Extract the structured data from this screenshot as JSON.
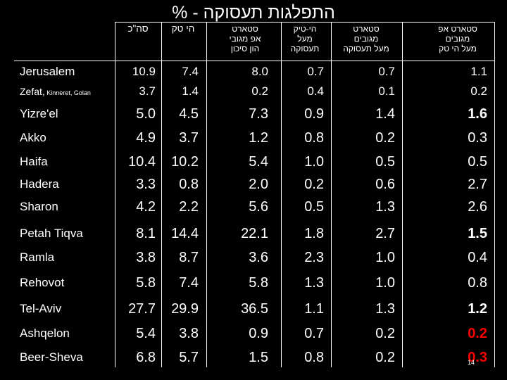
{
  "title": "התפלגות תעסוקה - %",
  "columns": [
    "סה\"כ",
    "הי טק",
    "סטארט\nאפ מגובי\nהון סיכון",
    "הי-טיק\nמעל\nתעסוקה",
    "סטארט\nמגובים\nמעל תעסוקה",
    "סטארט אפ\nמגובים\nמעל הי טק"
  ],
  "rows": [
    {
      "name": "Jerusalem",
      "values": [
        "10.9",
        "7.4",
        "8.0",
        "0.7",
        "0.7",
        "1.1"
      ]
    },
    {
      "name": "Zefat,",
      "name_suffix": " Kinneret, Golan",
      "values": [
        "3.7",
        "1.4",
        "0.2",
        "0.4",
        "0.1",
        "0.2"
      ]
    },
    {
      "name": "Yizre'el",
      "values": [
        "5.0",
        "4.5",
        "7.3",
        "0.9",
        "1.4",
        "1.6"
      ]
    },
    {
      "name": "Akko",
      "values": [
        "4.9",
        "3.7",
        "1.2",
        "0.8",
        "0.2",
        "0.3"
      ]
    },
    {
      "name": "Haifa",
      "values": [
        "10.4",
        "10.2",
        "5.4",
        "1.0",
        "0.5",
        "0.5"
      ]
    },
    {
      "name": "Hadera",
      "values": [
        "3.3",
        "0.8",
        "2.0",
        "0.2",
        "0.6",
        "2.7"
      ]
    },
    {
      "name": "Sharon",
      "values": [
        "4.2",
        "2.2",
        "5.6",
        "0.5",
        "1.3",
        "2.6"
      ]
    },
    {
      "name": "Petah Tiqva",
      "values": [
        "8.1",
        "14.4",
        "22.1",
        "1.8",
        "2.7",
        "1.5"
      ]
    },
    {
      "name": "Ramla",
      "values": [
        "3.8",
        "8.7",
        "3.6",
        "2.3",
        "1.0",
        "0.4"
      ]
    },
    {
      "name": "Rehovot",
      "values": [
        "5.8",
        "7.4",
        "5.8",
        "1.3",
        "1.0",
        "0.8"
      ]
    },
    {
      "name": "Tel-Aviv",
      "values": [
        "27.7",
        "29.9",
        "36.5",
        "1.1",
        "1.3",
        "1.2"
      ]
    },
    {
      "name": "Ashqelon",
      "values": [
        "5.4",
        "3.8",
        "0.9",
        "0.7",
        "0.2",
        "0.2"
      ]
    },
    {
      "name": "Beer-Sheva",
      "values": [
        "6.8",
        "5.7",
        "1.5",
        "0.8",
        "0.2",
        "0.3"
      ]
    }
  ],
  "page_number": "14",
  "colors": {
    "background": "#000000",
    "text": "#ffffff",
    "highlight": "#ff0000"
  }
}
